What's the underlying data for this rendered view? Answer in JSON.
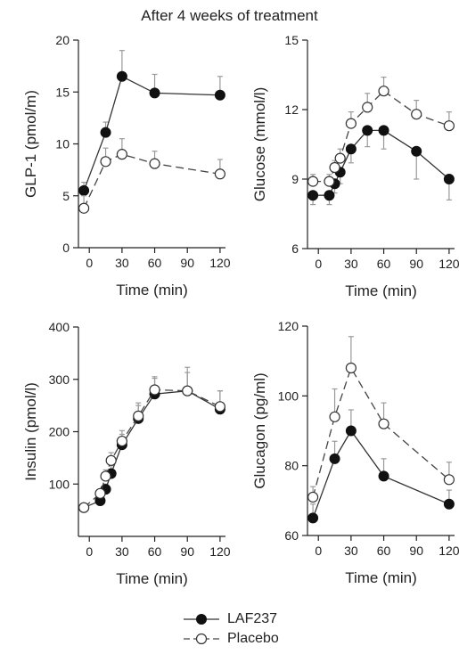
{
  "figure": {
    "title": "After 4 weeks of treatment"
  },
  "legend": [
    {
      "name": "LAF237",
      "style": "solid",
      "marker": "filled-circle"
    },
    {
      "name": "Placebo",
      "style": "dashed",
      "marker": "open-circle"
    }
  ],
  "chart_data": [
    {
      "type": "line",
      "id": "glp1",
      "xlabel": "Time (min)",
      "ylabel": "GLP-1 (pmol/m)",
      "xlim": [
        -10,
        125
      ],
      "ylim": [
        0,
        20
      ],
      "xticks": [
        0,
        30,
        60,
        90,
        120
      ],
      "yticks": [
        0,
        5,
        10,
        15,
        20
      ],
      "series": [
        {
          "name": "LAF237",
          "x": [
            -5,
            15,
            30,
            60,
            120
          ],
          "values": [
            5.5,
            11.1,
            16.5,
            14.9,
            14.7
          ],
          "err": [
            0.8,
            1.0,
            2.5,
            1.8,
            1.8
          ]
        },
        {
          "name": "Placebo",
          "x": [
            -5,
            15,
            30,
            60,
            120
          ],
          "values": [
            3.8,
            8.3,
            9.0,
            8.1,
            7.1
          ],
          "err": [
            1.2,
            1.3,
            1.5,
            1.2,
            1.4
          ]
        }
      ]
    },
    {
      "type": "line",
      "id": "glucose",
      "xlabel": "Time (min)",
      "ylabel": "Glucose (mmol/l)",
      "xlim": [
        -10,
        125
      ],
      "ylim": [
        6,
        15
      ],
      "xticks": [
        0,
        30,
        60,
        90,
        120
      ],
      "yticks": [
        6,
        9,
        12,
        15
      ],
      "series": [
        {
          "name": "LAF237",
          "x": [
            -5,
            10,
            15,
            20,
            30,
            45,
            60,
            90,
            120
          ],
          "values": [
            8.3,
            8.3,
            8.8,
            9.3,
            10.3,
            11.1,
            11.1,
            10.2,
            9.0
          ],
          "err": [
            0.4,
            0.4,
            0.4,
            0.5,
            0.6,
            0.7,
            0.8,
            1.2,
            0.9
          ]
        },
        {
          "name": "Placebo",
          "x": [
            -5,
            10,
            15,
            20,
            30,
            45,
            60,
            90,
            120
          ],
          "values": [
            8.9,
            8.9,
            9.5,
            9.9,
            11.4,
            12.1,
            12.8,
            11.8,
            11.3
          ],
          "err": [
            0.3,
            0.3,
            0.3,
            0.4,
            0.5,
            0.6,
            0.6,
            0.6,
            0.6
          ]
        }
      ]
    },
    {
      "type": "line",
      "id": "insulin",
      "xlabel": "Time (min)",
      "ylabel": "Insulin (pmol/l)",
      "xlim": [
        -10,
        125
      ],
      "ylim": [
        0,
        400
      ],
      "xticks": [
        0,
        30,
        60,
        90,
        120
      ],
      "yticks": [
        100,
        200,
        300,
        400
      ],
      "series": [
        {
          "name": "LAF237",
          "x": [
            -5,
            10,
            15,
            20,
            30,
            45,
            60,
            90,
            120
          ],
          "values": [
            55,
            68,
            90,
            120,
            175,
            225,
            272,
            278,
            243
          ],
          "err": [
            5,
            8,
            10,
            15,
            20,
            25,
            30,
            35,
            35
          ]
        },
        {
          "name": "Placebo",
          "x": [
            -5,
            10,
            15,
            20,
            30,
            45,
            60,
            90,
            120
          ],
          "values": [
            55,
            82,
            115,
            145,
            182,
            230,
            280,
            278,
            248
          ],
          "err": [
            5,
            8,
            12,
            15,
            20,
            25,
            25,
            45,
            30
          ]
        }
      ]
    },
    {
      "type": "line",
      "id": "glucagon",
      "xlabel": "Time (min)",
      "ylabel": "Glucagon (pg/ml)",
      "xlim": [
        -10,
        125
      ],
      "ylim": [
        60,
        120
      ],
      "xticks": [
        0,
        30,
        60,
        90,
        120
      ],
      "yticks": [
        60,
        80,
        100,
        120
      ],
      "series": [
        {
          "name": "LAF237",
          "x": [
            -5,
            15,
            30,
            60,
            120
          ],
          "values": [
            65,
            82,
            90,
            77,
            69
          ],
          "err": [
            4,
            5,
            6,
            5,
            4
          ]
        },
        {
          "name": "Placebo",
          "x": [
            -5,
            15,
            30,
            60,
            120
          ],
          "values": [
            71,
            94,
            108,
            92,
            76
          ],
          "err": [
            3,
            8,
            9,
            6,
            5
          ]
        }
      ]
    }
  ]
}
